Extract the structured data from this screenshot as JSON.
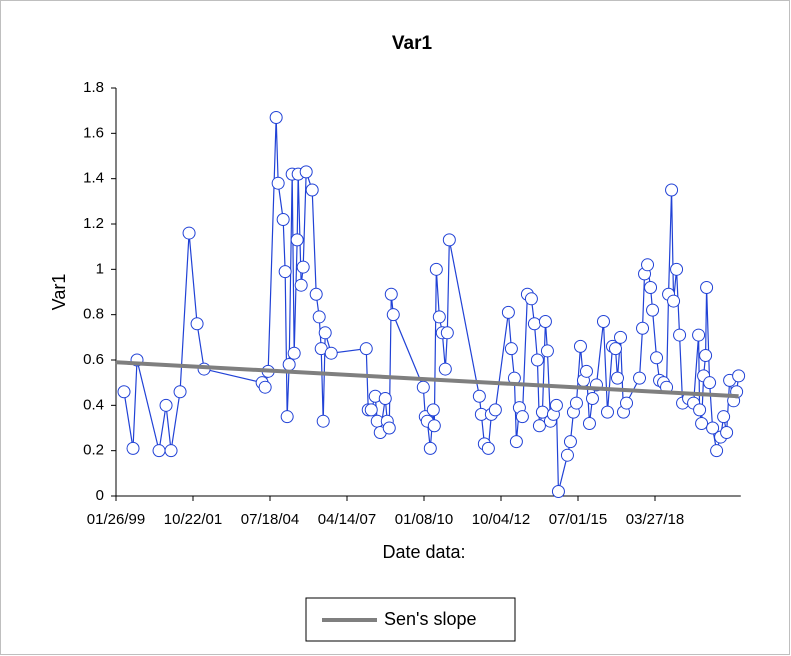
{
  "chart_data": {
    "type": "line",
    "title": "Var1",
    "x_label": "Date data:",
    "y_label": "Var1",
    "xlim": [
      36186,
      44300
    ],
    "ylim": [
      0,
      1.8
    ],
    "xticks": [
      {
        "value": 36186,
        "label": "01/26/99"
      },
      {
        "value": 37186,
        "label": "10/22/01"
      },
      {
        "value": 38186,
        "label": "07/18/04"
      },
      {
        "value": 39186,
        "label": "04/14/07"
      },
      {
        "value": 40186,
        "label": "01/08/10"
      },
      {
        "value": 41186,
        "label": "10/04/12"
      },
      {
        "value": 42186,
        "label": "07/01/15"
      },
      {
        "value": 43186,
        "label": "03/27/18"
      }
    ],
    "yticks": [
      0,
      0.2,
      0.4,
      0.6,
      0.8,
      1,
      1.2,
      1.4,
      1.6,
      1.8
    ],
    "grid": false,
    "series": [
      {
        "color": "#2142d6",
        "marker": "circle",
        "x": [
          36290,
          36407,
          36459,
          36745,
          36836,
          36901,
          37018,
          37135,
          37239,
          37330,
          38084,
          38123,
          38162,
          38266,
          38292,
          38357,
          38383,
          38409,
          38435,
          38474,
          38500,
          38539,
          38552,
          38591,
          38617,
          38656,
          38734,
          38786,
          38825,
          38851,
          38877,
          38903,
          38981,
          39436,
          39462,
          39501,
          39553,
          39579,
          39618,
          39683,
          39709,
          39735,
          39761,
          39787,
          40177,
          40203,
          40229,
          40268,
          40307,
          40320,
          40346,
          40385,
          40424,
          40463,
          40489,
          40515,
          40905,
          40931,
          40970,
          41022,
          41061,
          41113,
          41282,
          41321,
          41360,
          41386,
          41425,
          41464,
          41529,
          41581,
          41620,
          41659,
          41685,
          41724,
          41763,
          41789,
          41828,
          41867,
          41906,
          41932,
          42049,
          42088,
          42127,
          42166,
          42218,
          42257,
          42296,
          42335,
          42374,
          42426,
          42517,
          42569,
          42634,
          42673,
          42699,
          42738,
          42777,
          42816,
          42985,
          43024,
          43050,
          43089,
          43128,
          43154,
          43206,
          43245,
          43297,
          43336,
          43362,
          43401,
          43427,
          43466,
          43505,
          43544,
          43622,
          43687,
          43752,
          43765,
          43791,
          43817,
          43843,
          43856,
          43895,
          43934,
          43986,
          44038,
          44077,
          44116,
          44155,
          44207,
          44246,
          44272
        ],
        "values": [
          0.46,
          0.21,
          0.6,
          0.2,
          0.4,
          0.2,
          0.46,
          1.16,
          0.76,
          0.56,
          0.5,
          0.48,
          0.55,
          1.67,
          1.38,
          1.22,
          0.99,
          0.35,
          0.58,
          1.42,
          0.63,
          1.13,
          1.42,
          0.93,
          1.01,
          1.43,
          1.35,
          0.89,
          0.79,
          0.65,
          0.33,
          0.72,
          0.63,
          0.65,
          0.38,
          0.38,
          0.44,
          0.33,
          0.28,
          0.43,
          0.33,
          0.3,
          0.89,
          0.8,
          0.48,
          0.35,
          0.33,
          0.21,
          0.38,
          0.31,
          1.0,
          0.79,
          0.72,
          0.56,
          0.72,
          1.13,
          0.44,
          0.36,
          0.23,
          0.21,
          0.36,
          0.38,
          0.81,
          0.65,
          0.52,
          0.24,
          0.39,
          0.35,
          0.89,
          0.87,
          0.76,
          0.6,
          0.31,
          0.37,
          0.77,
          0.64,
          0.33,
          0.36,
          0.4,
          0.02,
          0.18,
          0.24,
          0.37,
          0.41,
          0.66,
          0.51,
          0.55,
          0.32,
          0.43,
          0.49,
          0.77,
          0.37,
          0.66,
          0.65,
          0.52,
          0.7,
          0.37,
          0.41,
          0.52,
          0.74,
          0.98,
          1.02,
          0.92,
          0.82,
          0.61,
          0.51,
          0.5,
          0.48,
          0.89,
          1.35,
          0.86,
          1.0,
          0.71,
          0.41,
          0.43,
          0.41,
          0.71,
          0.38,
          0.32,
          0.53,
          0.62,
          0.92,
          0.5,
          0.3,
          0.2,
          0.26,
          0.35,
          0.28,
          0.51,
          0.42,
          0.46,
          0.53
        ]
      },
      {
        "name": "Sen's slope",
        "color": "#7f7f7f",
        "marker": "none",
        "x": [
          36186,
          44272
        ],
        "values": [
          0.59,
          0.44
        ]
      }
    ]
  }
}
